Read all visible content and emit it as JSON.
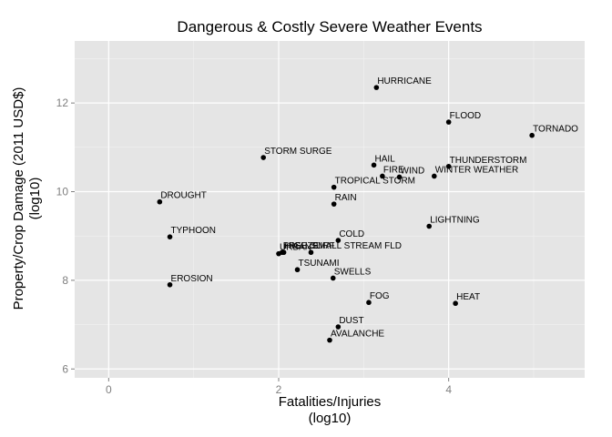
{
  "chart_data": {
    "type": "scatter",
    "title": "Dangerous & Costly Severe Weather Events",
    "xlabel": "Fatalities/Injuries",
    "xlabel_sub": "(log10)",
    "ylabel": "Property/Crop Damage (2011 USD$)",
    "ylabel_sub": "(log10)",
    "xlim": [
      -0.4,
      5.6
    ],
    "ylim": [
      5.8,
      13.4
    ],
    "x_ticks": [
      0,
      2,
      4
    ],
    "y_ticks": [
      6,
      8,
      10,
      12
    ],
    "grid": true,
    "background": "#e5e5e5",
    "grid_color": "#ffffff",
    "point_color": "#000000",
    "points": [
      {
        "label": "HURRICANE",
        "x": 3.15,
        "y": 12.35
      },
      {
        "label": "FLOOD",
        "x": 4.0,
        "y": 11.57
      },
      {
        "label": "TORNADO",
        "x": 4.98,
        "y": 11.27
      },
      {
        "label": "STORM SURGE",
        "x": 1.82,
        "y": 10.77
      },
      {
        "label": "HAIL",
        "x": 3.12,
        "y": 10.6
      },
      {
        "label": "THUNDERSTORM",
        "x": 4.0,
        "y": 10.57
      },
      {
        "label": "FIRE",
        "x": 3.22,
        "y": 10.35
      },
      {
        "label": "WIND",
        "x": 3.42,
        "y": 10.33
      },
      {
        "label": "WINTER WEATHER",
        "x": 3.83,
        "y": 10.35
      },
      {
        "label": "TROPICAL STORM",
        "x": 2.65,
        "y": 10.1
      },
      {
        "label": "DROUGHT",
        "x": 0.6,
        "y": 9.77
      },
      {
        "label": "RAIN",
        "x": 2.65,
        "y": 9.72
      },
      {
        "label": "LIGHTNING",
        "x": 3.77,
        "y": 9.22
      },
      {
        "label": "TYPHOON",
        "x": 0.72,
        "y": 8.98
      },
      {
        "label": "COLD",
        "x": 2.7,
        "y": 8.9
      },
      {
        "label": "URBAN",
        "x": 2.0,
        "y": 8.6
      },
      {
        "label": "FREEZE",
        "x": 2.04,
        "y": 8.63
      },
      {
        "label": "HIGH SURF",
        "x": 2.06,
        "y": 8.63
      },
      {
        "label": "SMALL STREAM FLD",
        "x": 2.38,
        "y": 8.63
      },
      {
        "label": "TSUNAMI",
        "x": 2.22,
        "y": 8.24
      },
      {
        "label": "SWELLS",
        "x": 2.64,
        "y": 8.05
      },
      {
        "label": "EROSION",
        "x": 0.72,
        "y": 7.9
      },
      {
        "label": "FOG",
        "x": 3.06,
        "y": 7.5
      },
      {
        "label": "HEAT",
        "x": 4.08,
        "y": 7.48
      },
      {
        "label": "DUST",
        "x": 2.7,
        "y": 6.95
      },
      {
        "label": "AVALANCHE",
        "x": 2.6,
        "y": 6.65
      }
    ]
  }
}
